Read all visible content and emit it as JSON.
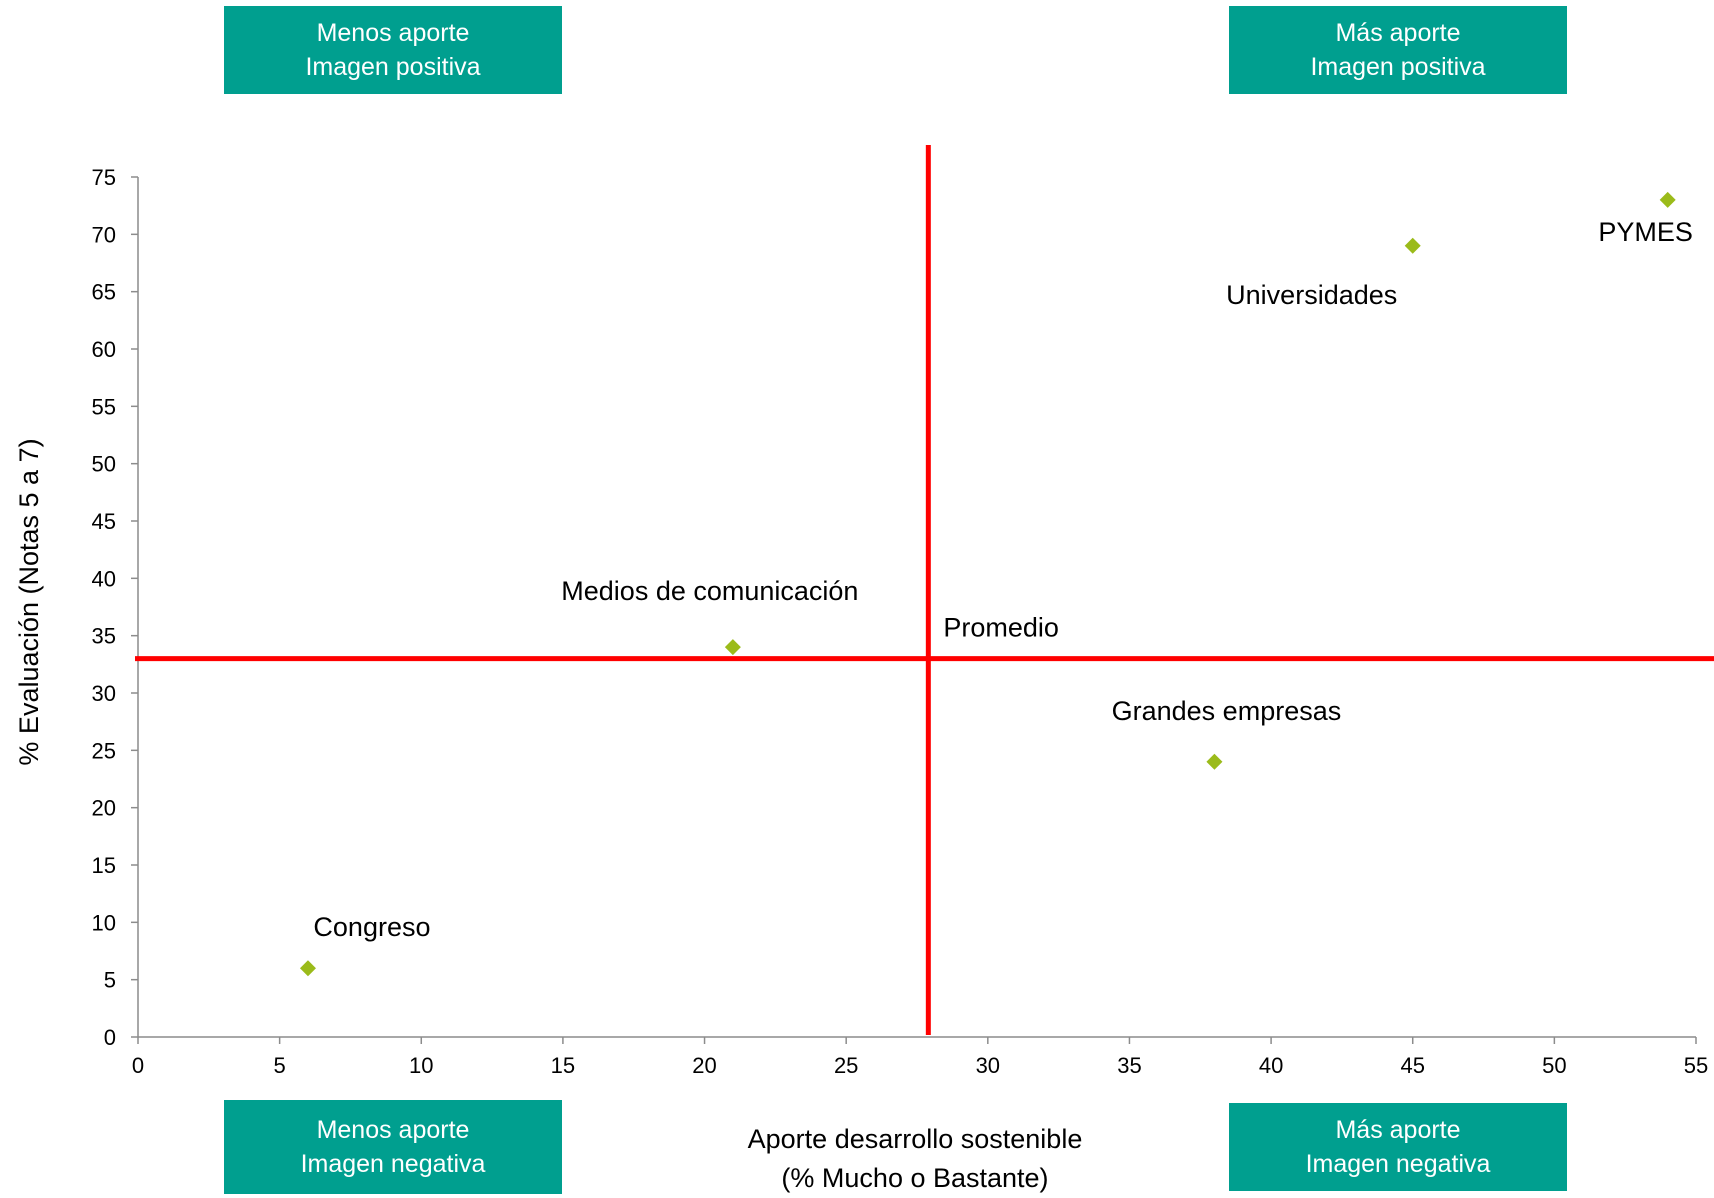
{
  "quadrants": {
    "top_left": {
      "line1": "Menos aporte",
      "line2": "Imagen positiva"
    },
    "top_right": {
      "line1": "Más aporte",
      "line2": "Imagen positiva"
    },
    "bottom_left": {
      "line1": "Menos aporte",
      "line2": "Imagen negativa"
    },
    "bottom_right": {
      "line1": "Más aporte",
      "line2": "Imagen negativa"
    }
  },
  "colors": {
    "quadrant_box": "#009f8f",
    "point": "#9bbb1a",
    "reference_line": "#ff0000",
    "axis": "#8c8c8c"
  },
  "chart_data": {
    "type": "scatter",
    "xlabel_lines": [
      "Aporte desarrollo sostenible",
      "(% Mucho o Bastante)"
    ],
    "ylabel": "% Evaluación (Notas 5 a 7)",
    "xlim": [
      0,
      55
    ],
    "ylim": [
      0,
      75
    ],
    "xticks": [
      0,
      5,
      10,
      15,
      20,
      25,
      30,
      35,
      40,
      45,
      50,
      55
    ],
    "yticks": [
      0,
      5,
      10,
      15,
      20,
      25,
      30,
      35,
      40,
      45,
      50,
      55,
      60,
      65,
      70,
      75
    ],
    "grid": false,
    "points": [
      {
        "label": "PYMES",
        "x": 54,
        "y": 73
      },
      {
        "label": "Universidades",
        "x": 45,
        "y": 69
      },
      {
        "label": "Medios de comunicación",
        "x": 21,
        "y": 34
      },
      {
        "label": "Grandes empresas",
        "x": 38,
        "y": 24
      },
      {
        "label": "Congreso",
        "x": 6,
        "y": 6
      }
    ],
    "reference_lines": {
      "label": "Promedio",
      "x": 27.9,
      "y": 33
    }
  }
}
